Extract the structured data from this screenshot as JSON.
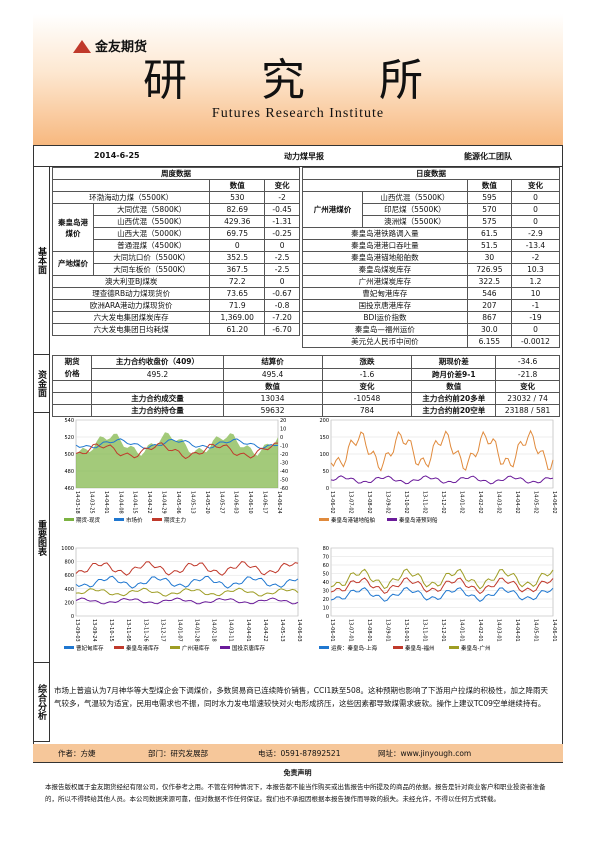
{
  "header": {
    "logo": "金友期货",
    "title": "研 究 所",
    "subtitle": "Futures Research Institute"
  },
  "topbar": {
    "date": "2014-6-25",
    "report": "动力煤早报",
    "team": "能源化工团队"
  },
  "sections": {
    "basic": "基本面",
    "fund": "资金面",
    "charts": "重要图表",
    "summary": "综合分析"
  },
  "weekly": {
    "title": "周度数据",
    "col_num": "数值",
    "col_chg": "变化",
    "rows": [
      [
        "环渤海动力煤（5500K）",
        "530",
        "-2"
      ],
      [
        "大同优混（5800K）",
        "82.69",
        "-0.45"
      ],
      [
        "山西优混（5500K）",
        "429.36",
        "-1.31"
      ],
      [
        "山西大混（5000K）",
        "69.75",
        "-0.25"
      ],
      [
        "普通混煤（4500K）",
        "0",
        "0"
      ],
      [
        "大同坑口价（5500K）",
        "352.5",
        "-2.5"
      ],
      [
        "大同车板价（5500K）",
        "367.5",
        "-2.5"
      ],
      [
        "澳大利亚BJ煤炭",
        "72.2",
        "0"
      ],
      [
        "理查德RB动力煤现货价",
        "73.65",
        "-0.67"
      ],
      [
        "欧洲ARA港动力煤现货价",
        "71.9",
        "-0.8"
      ],
      [
        "六大发电集团煤炭库存",
        "1,369.00",
        "-7.20"
      ],
      [
        "六大发电集团日均耗煤",
        "61.20",
        "-6.70"
      ]
    ],
    "group_qhd": "秦皇岛港煤价",
    "group_origin": "产地煤价"
  },
  "daily": {
    "title": "日度数据",
    "col_num": "数值",
    "col_chg": "变化",
    "group_gz": "广州港煤价",
    "rows": [
      [
        "山西优混（5500K）",
        "595",
        "0"
      ],
      [
        "印尼煤（5500K）",
        "570",
        "0"
      ],
      [
        "澳洲煤（5500K）",
        "575",
        "0"
      ],
      [
        "秦皇岛港铁路调入量",
        "61.5",
        "-2.9"
      ],
      [
        "秦皇岛港港口吞吐量",
        "51.5",
        "-13.4"
      ],
      [
        "秦皇岛港锚地船舶数",
        "30",
        "-2"
      ],
      [
        "秦皇岛煤炭库存",
        "726.95",
        "10.3"
      ],
      [
        "广州港煤炭库存",
        "322.5",
        "1.2"
      ],
      [
        "曹妃甸港库存",
        "546",
        "10"
      ],
      [
        "国投京唐港库存",
        "207",
        "-1"
      ],
      [
        "BDI运价指数",
        "867",
        "-19"
      ],
      [
        "秦皇岛—福州运价",
        "30.0",
        "0"
      ],
      [
        "美元兑人民币中间价",
        "6.155",
        "-0.0012"
      ]
    ]
  },
  "fund": {
    "l1": "期货",
    "l2": "价格",
    "h_close": "主力合约收盘价（409）",
    "h_settle": "结算价",
    "h_chg": "涨跌",
    "close": "495.2",
    "settle": "495.4",
    "chg": "-1.6",
    "h_basis": "期现价差",
    "basis": "-34.6",
    "h_spread": "跨月价差9-1",
    "spread": "-21.8",
    "num": "数值",
    "change": "变化",
    "vol_l": "主力合约成交量",
    "vol": "13034",
    "vol_c": "-10548",
    "oi_l": "主力合约持仓量",
    "oi": "59632",
    "oi_c": "784",
    "long_l": "主力合约前20多单",
    "long": "23032",
    "long_c": "74",
    "short_l": "主力合约前20空单",
    "short": "23188",
    "short_c": "581"
  },
  "charts": {
    "c1_legend": [
      "期货-现货",
      "市场价",
      "期货主力"
    ],
    "c1_y": [
      "540",
      "520",
      "500",
      "480",
      "460"
    ],
    "c1_y2": [
      "20",
      "10",
      "0",
      "-10",
      "-20",
      "-30",
      "-40",
      "-50",
      "-60"
    ],
    "c1_x": [
      "14-03-18",
      "14-03-25",
      "14-04-01",
      "14-04-08",
      "14-04-15",
      "14-04-22",
      "14-04-29",
      "14-05-06",
      "14-05-13",
      "14-05-20",
      "14-05-27",
      "14-06-03",
      "14-06-10",
      "14-06-17",
      "14-06-24"
    ],
    "c2_legend": [
      "秦皇岛港锚地船舶",
      "秦皇岛港预到船"
    ],
    "c2_y": [
      "200",
      "150",
      "100",
      "50",
      "0"
    ],
    "c2_x": [
      "13-06-02",
      "13-07-02",
      "13-08-02",
      "13-09-02",
      "13-10-02",
      "13-11-02",
      "13-12-02",
      "14-01-02",
      "14-02-02",
      "14-03-02",
      "14-04-02",
      "14-05-02",
      "14-06-02"
    ],
    "c3_legend": [
      "曹妃甸库存",
      "秦皇岛港库存",
      "广州港库存",
      "国投京唐库存"
    ],
    "c3_y": [
      "1000",
      "800",
      "600",
      "400",
      "200",
      "0"
    ],
    "c3_x": [
      "13-09-03",
      "13-09-24",
      "13-10-15",
      "13-11-05",
      "13-11-26",
      "13-12-17",
      "14-01-07",
      "14-01-28",
      "14-02-18",
      "14-03-11",
      "14-04-01",
      "14-04-22",
      "14-05-13",
      "14-06-03"
    ],
    "c4_legend": [
      "运费：秦皇岛-上海",
      "秦皇岛-福州",
      "秦皇岛-广州"
    ],
    "c4_y": [
      "80",
      "70",
      "60",
      "50",
      "40",
      "30",
      "20",
      "10",
      "0"
    ],
    "c4_x": [
      "13-06-01",
      "13-07-01",
      "13-08-01",
      "13-09-01",
      "13-10-01",
      "13-11-01",
      "13-12-01",
      "14-01-01",
      "14-02-01",
      "14-03-01",
      "14-04-01",
      "14-05-01",
      "14-06-01"
    ]
  },
  "colors": {
    "brand_orange": "#f6c79a",
    "green_area": "#7cb342",
    "blue": "#1f77d0",
    "red": "#c0392b",
    "purple": "#6a1b9a",
    "olive": "#9e9d24"
  },
  "summary_text": "市场上普遍认为7月神华等大型煤企会下调煤价，多数贸易商已连续降价销售，CCI1跌至508。这种预期也影响了下游用户拉煤的积极性，加之降雨天气较多，气温较为适宜，民用电需求也不振，同时水力发电增速较快对火电形成挤压，这些因素都导致煤需求疲软。操作上建议TC09空单继续持有。",
  "footer": {
    "author": "作者：方婕",
    "dept": "部门：研究发展部",
    "phone": "电话：0591-87892521",
    "site": "网址：www.jinyough.com"
  },
  "disclaimer_title": "免责声明",
  "disclaimer": "本报告版权属于金友期货经纪有限公司，仅作参考之用。不管在何种情况下，本报告都不能当作购买或出售报告中所提及的商品的依据。报告是针对商业客户和职业投资者准备的，所以不得转给其他人员。本公司数据来源可靠，但对数据不作任何保证。我们也不承担因根据本报告操作而导致的损失。未经允许，不得以任何方式转载。"
}
